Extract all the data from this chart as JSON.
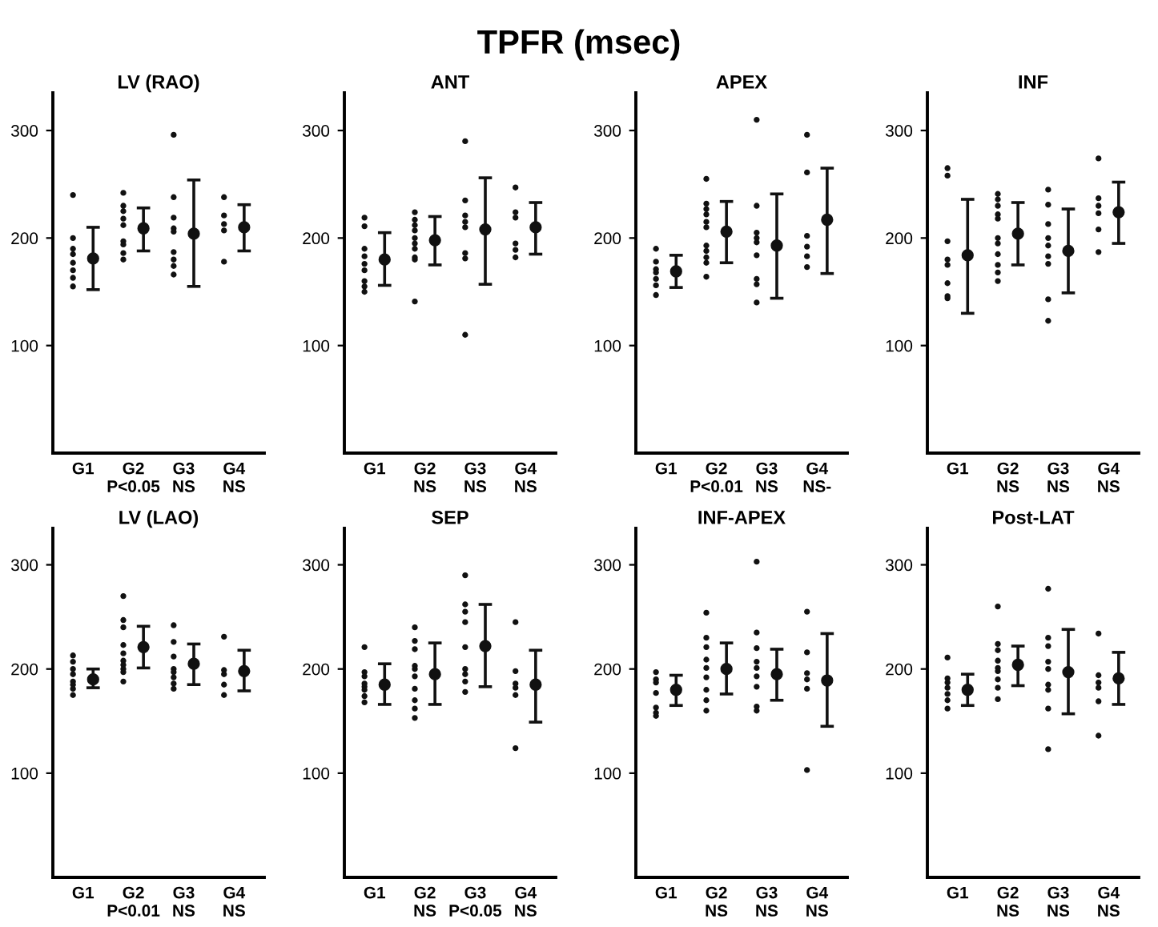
{
  "chart_data": [
    {
      "type": "other",
      "title": "TPFR (msec)"
    },
    {
      "type": "scatter",
      "title": "LV (RAO)",
      "categories": [
        "G1",
        "G2\nP<0.05",
        "G3\nNS",
        "G4\nNS"
      ],
      "ylim": [
        0,
        335
      ],
      "yticks": [
        100,
        200,
        300
      ],
      "grid": false,
      "legend": false,
      "marker": "circle",
      "series": [
        {
          "color": "#111111",
          "x": [
            "G1",
            "G1",
            "G1",
            "G1",
            "G1",
            "G1",
            "G1",
            "G1",
            "G2\nP<0.05",
            "G2\nP<0.05",
            "G2\nP<0.05",
            "G2\nP<0.05",
            "G2\nP<0.05",
            "G2\nP<0.05",
            "G2\nP<0.05",
            "G2\nP<0.05",
            "G2\nP<0.05",
            "G3\nNS",
            "G3\nNS",
            "G3\nNS",
            "G3\nNS",
            "G3\nNS",
            "G3\nNS",
            "G3\nNS",
            "G3\nNS",
            "G3\nNS",
            "G4\nNS",
            "G4\nNS",
            "G4\nNS",
            "G4\nNS",
            "G4\nNS"
          ],
          "values": [
            240,
            200,
            190,
            185,
            177,
            170,
            163,
            155,
            242,
            230,
            225,
            218,
            212,
            197,
            194,
            186,
            180,
            296,
            238,
            219,
            209,
            206,
            187,
            180,
            174,
            166,
            238,
            221,
            213,
            207,
            178
          ]
        },
        {
          "color": "#111111",
          "values": [
            181,
            209,
            204,
            210
          ],
          "errors": [
            [
              152,
              210
            ],
            [
              188,
              228
            ],
            [
              155,
              254
            ],
            [
              188,
              231
            ]
          ]
        }
      ]
    },
    {
      "type": "scatter",
      "title": "ANT",
      "categories": [
        "G1",
        "G2\nNS",
        "G3\nNS",
        "G4\nNS"
      ],
      "ylim": [
        0,
        335
      ],
      "yticks": [
        100,
        200,
        300
      ],
      "grid": false,
      "legend": false,
      "marker": "circle",
      "series": [
        {
          "color": "#111111",
          "x": [
            "G1",
            "G1",
            "G1",
            "G1",
            "G1",
            "G1",
            "G1",
            "G1",
            "G1",
            "G2\nNS",
            "G2\nNS",
            "G2\nNS",
            "G2\nNS",
            "G2\nNS",
            "G2\nNS",
            "G2\nNS",
            "G2\nNS",
            "G2\nNS",
            "G2\nNS",
            "G3\nNS",
            "G3\nNS",
            "G3\nNS",
            "G3\nNS",
            "G3\nNS",
            "G3\nNS",
            "G3\nNS",
            "G3\nNS",
            "G4\nNS",
            "G4\nNS",
            "G4\nNS",
            "G4\nNS",
            "G4\nNS",
            "G4\nNS"
          ],
          "values": [
            219,
            211,
            190,
            183,
            176,
            170,
            160,
            155,
            150,
            224,
            217,
            212,
            207,
            200,
            195,
            190,
            182,
            180,
            141,
            290,
            235,
            221,
            215,
            210,
            186,
            181,
            110,
            247,
            224,
            219,
            195,
            189,
            182
          ]
        },
        {
          "color": "#111111",
          "values": [
            180,
            198,
            208,
            210
          ],
          "errors": [
            [
              156,
              205
            ],
            [
              175,
              220
            ],
            [
              157,
              256
            ],
            [
              185,
              233
            ]
          ]
        }
      ]
    },
    {
      "type": "scatter",
      "title": "APEX",
      "categories": [
        "G1",
        "G2\nP<0.01",
        "G3\nNS",
        "G4\nNS-"
      ],
      "ylim": [
        0,
        335
      ],
      "yticks": [
        100,
        200,
        300
      ],
      "grid": false,
      "legend": false,
      "marker": "circle",
      "series": [
        {
          "color": "#111111",
          "x": [
            "G1",
            "G1",
            "G1",
            "G1",
            "G1",
            "G1",
            "G1",
            "G2\nP<0.01",
            "G2\nP<0.01",
            "G2\nP<0.01",
            "G2\nP<0.01",
            "G2\nP<0.01",
            "G2\nP<0.01",
            "G2\nP<0.01",
            "G2\nP<0.01",
            "G2\nP<0.01",
            "G2\nP<0.01",
            "G2\nP<0.01",
            "G3\nNS",
            "G3\nNS",
            "G3\nNS",
            "G3\nNS",
            "G3\nNS",
            "G3\nNS",
            "G3\nNS",
            "G3\nNS",
            "G3\nNS",
            "G4\nNS-",
            "G4\nNS-",
            "G4\nNS-",
            "G4\nNS-",
            "G4\nNS-",
            "G4\nNS-"
          ],
          "values": [
            190,
            178,
            171,
            168,
            162,
            156,
            147,
            255,
            232,
            227,
            222,
            215,
            210,
            193,
            188,
            182,
            177,
            164,
            310,
            230,
            205,
            200,
            196,
            184,
            162,
            157,
            140,
            296,
            261,
            202,
            192,
            183,
            173
          ]
        },
        {
          "color": "#111111",
          "values": [
            169,
            206,
            193,
            217
          ],
          "errors": [
            [
              154,
              184
            ],
            [
              177,
              234
            ],
            [
              144,
              241
            ],
            [
              167,
              265
            ]
          ]
        }
      ]
    },
    {
      "type": "scatter",
      "title": "INF",
      "categories": [
        "G1",
        "G2\nNS",
        "G3\nNS",
        "G4\nNS"
      ],
      "ylim": [
        0,
        335
      ],
      "yticks": [
        100,
        200,
        300
      ],
      "grid": false,
      "legend": false,
      "marker": "circle",
      "series": [
        {
          "color": "#111111",
          "x": [
            "G1",
            "G1",
            "G1",
            "G1",
            "G1",
            "G1",
            "G1",
            "G1",
            "G2\nNS",
            "G2\nNS",
            "G2\nNS",
            "G2\nNS",
            "G2\nNS",
            "G2\nNS",
            "G2\nNS",
            "G2\nNS",
            "G2\nNS",
            "G2\nNS",
            "G2\nNS",
            "G3\nNS",
            "G3\nNS",
            "G3\nNS",
            "G3\nNS",
            "G3\nNS",
            "G3\nNS",
            "G3\nNS",
            "G3\nNS",
            "G3\nNS",
            "G4\nNS",
            "G4\nNS",
            "G4\nNS",
            "G4\nNS",
            "G4\nNS",
            "G4\nNS"
          ],
          "values": [
            265,
            258,
            197,
            180,
            175,
            158,
            146,
            144,
            241,
            236,
            230,
            222,
            218,
            200,
            195,
            185,
            175,
            168,
            160,
            245,
            231,
            213,
            200,
            193,
            183,
            176,
            143,
            123,
            274,
            237,
            230,
            223,
            208,
            187
          ]
        },
        {
          "color": "#111111",
          "values": [
            184,
            204,
            188,
            224
          ],
          "errors": [
            [
              130,
              236
            ],
            [
              175,
              233
            ],
            [
              149,
              227
            ],
            [
              195,
              252
            ]
          ]
        }
      ]
    },
    {
      "type": "scatter",
      "title": "LV (LAO)",
      "categories": [
        "G1",
        "G2\nP<0.01",
        "G3\nNS",
        "G4\nNS"
      ],
      "ylim": [
        0,
        335
      ],
      "yticks": [
        100,
        200,
        300
      ],
      "grid": false,
      "legend": false,
      "marker": "circle",
      "series": [
        {
          "color": "#111111",
          "x": [
            "G1",
            "G1",
            "G1",
            "G1",
            "G1",
            "G1",
            "G1",
            "G1",
            "G2\nP<0.01",
            "G2\nP<0.01",
            "G2\nP<0.01",
            "G2\nP<0.01",
            "G2\nP<0.01",
            "G2\nP<0.01",
            "G2\nP<0.01",
            "G2\nP<0.01",
            "G2\nP<0.01",
            "G2\nP<0.01",
            "G3\nNS",
            "G3\nNS",
            "G3\nNS",
            "G3\nNS",
            "G3\nNS",
            "G3\nNS",
            "G3\nNS",
            "G3\nNS",
            "G4\nNS",
            "G4\nNS",
            "G4\nNS",
            "G4\nNS",
            "G4\nNS"
          ],
          "values": [
            213,
            207,
            200,
            195,
            188,
            185,
            181,
            175,
            270,
            247,
            240,
            223,
            215,
            208,
            204,
            200,
            197,
            188,
            242,
            226,
            212,
            200,
            197,
            192,
            186,
            181,
            231,
            199,
            195,
            185,
            175
          ]
        },
        {
          "color": "#111111",
          "values": [
            190,
            221,
            205,
            198
          ],
          "errors": [
            [
              182,
              200
            ],
            [
              201,
              241
            ],
            [
              185,
              224
            ],
            [
              179,
              218
            ]
          ]
        }
      ]
    },
    {
      "type": "scatter",
      "title": "SEP",
      "categories": [
        "G1",
        "G2\nNS",
        "G3\nP<0.05",
        "G4\nNS"
      ],
      "ylim": [
        0,
        335
      ],
      "yticks": [
        100,
        200,
        300
      ],
      "grid": false,
      "legend": false,
      "marker": "circle",
      "series": [
        {
          "color": "#111111",
          "x": [
            "G1",
            "G1",
            "G1",
            "G1",
            "G1",
            "G1",
            "G1",
            "G1",
            "G2\nNS",
            "G2\nNS",
            "G2\nNS",
            "G2\nNS",
            "G2\nNS",
            "G2\nNS",
            "G2\nNS",
            "G2\nNS",
            "G2\nNS",
            "G2\nNS",
            "G3\nP<0.05",
            "G3\nP<0.05",
            "G3\nP<0.05",
            "G3\nP<0.05",
            "G3\nP<0.05",
            "G3\nP<0.05",
            "G3\nP<0.05",
            "G3\nP<0.05",
            "G3\nP<0.05",
            "G4\nNS",
            "G4\nNS",
            "G4\nNS",
            "G4\nNS",
            "G4\nNS",
            "G4\nNS"
          ],
          "values": [
            221,
            197,
            193,
            186,
            183,
            180,
            174,
            168,
            240,
            227,
            219,
            203,
            200,
            193,
            181,
            170,
            162,
            153,
            290,
            262,
            255,
            245,
            221,
            200,
            195,
            188,
            178,
            245,
            198,
            186,
            182,
            175,
            124
          ]
        },
        {
          "color": "#111111",
          "values": [
            185,
            195,
            222,
            185
          ],
          "errors": [
            [
              166,
              205
            ],
            [
              166,
              225
            ],
            [
              183,
              262
            ],
            [
              149,
              218
            ]
          ]
        }
      ]
    },
    {
      "type": "scatter",
      "title": "INF-APEX",
      "categories": [
        "G1",
        "G2\nNS",
        "G3\nNS",
        "G4\nNS"
      ],
      "ylim": [
        0,
        335
      ],
      "yticks": [
        100,
        200,
        300
      ],
      "grid": false,
      "legend": false,
      "marker": "circle",
      "series": [
        {
          "color": "#111111",
          "x": [
            "G1",
            "G1",
            "G1",
            "G1",
            "G1",
            "G1",
            "G1",
            "G2\nNS",
            "G2\nNS",
            "G2\nNS",
            "G2\nNS",
            "G2\nNS",
            "G2\nNS",
            "G2\nNS",
            "G2\nNS",
            "G2\nNS",
            "G3\nNS",
            "G3\nNS",
            "G3\nNS",
            "G3\nNS",
            "G3\nNS",
            "G3\nNS",
            "G3\nNS",
            "G3\nNS",
            "G3\nNS",
            "G4\nNS",
            "G4\nNS",
            "G4\nNS",
            "G4\nNS",
            "G4\nNS",
            "G4\nNS"
          ],
          "values": [
            197,
            190,
            187,
            177,
            163,
            158,
            155,
            254,
            230,
            221,
            209,
            201,
            192,
            180,
            170,
            160,
            303,
            235,
            220,
            207,
            201,
            193,
            183,
            164,
            160,
            255,
            216,
            196,
            190,
            181,
            103
          ]
        },
        {
          "color": "#111111",
          "values": [
            180,
            200,
            195,
            189
          ],
          "errors": [
            [
              165,
              194
            ],
            [
              176,
              225
            ],
            [
              170,
              219
            ],
            [
              145,
              234
            ]
          ]
        }
      ]
    },
    {
      "type": "scatter",
      "title": "Post-LAT",
      "categories": [
        "G1",
        "G2\nNS",
        "G3\nNS",
        "G4\nNS"
      ],
      "ylim": [
        0,
        335
      ],
      "yticks": [
        100,
        200,
        300
      ],
      "grid": false,
      "legend": false,
      "marker": "circle",
      "series": [
        {
          "color": "#111111",
          "x": [
            "G1",
            "G1",
            "G1",
            "G1",
            "G1",
            "G1",
            "G1",
            "G2\nNS",
            "G2\nNS",
            "G2\nNS",
            "G2\nNS",
            "G2\nNS",
            "G2\nNS",
            "G2\nNS",
            "G2\nNS",
            "G2\nNS",
            "G3\nNS",
            "G3\nNS",
            "G3\nNS",
            "G3\nNS",
            "G3\nNS",
            "G3\nNS",
            "G3\nNS",
            "G3\nNS",
            "G3\nNS",
            "G4\nNS",
            "G4\nNS",
            "G4\nNS",
            "G4\nNS",
            "G4\nNS",
            "G4\nNS"
          ],
          "values": [
            211,
            191,
            187,
            182,
            176,
            170,
            162,
            260,
            224,
            218,
            208,
            201,
            198,
            190,
            182,
            171,
            277,
            230,
            222,
            207,
            200,
            185,
            180,
            162,
            123,
            234,
            194,
            187,
            182,
            169,
            136
          ]
        },
        {
          "color": "#111111",
          "values": [
            180,
            204,
            197,
            191
          ],
          "errors": [
            [
              165,
              195
            ],
            [
              184,
              222
            ],
            [
              157,
              238
            ],
            [
              166,
              216
            ]
          ]
        }
      ]
    }
  ]
}
